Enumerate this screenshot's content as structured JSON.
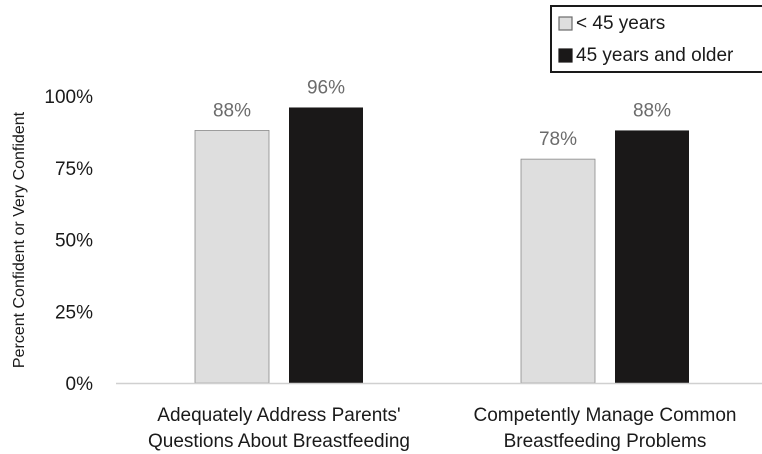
{
  "chart_data": {
    "type": "bar",
    "categories": [
      [
        "Adequately Address Parents'",
        "Questions About Breastfeeding"
      ],
      [
        "Competently Manage Common",
        "Breastfeeding Problems"
      ]
    ],
    "series": [
      {
        "name": "< 45 years",
        "values": [
          88,
          78
        ],
        "color": "#dedede",
        "stroke": "#8a8a8a"
      },
      {
        "name": "45 years and older",
        "values": [
          96,
          88
        ],
        "color": "#1a1818",
        "stroke": "#1a1818"
      }
    ],
    "data_labels": [
      [
        "88%",
        "78%"
      ],
      [
        "96%",
        "88%"
      ]
    ],
    "yticks": [
      0,
      25,
      50,
      75,
      100
    ],
    "ytick_labels": [
      "0%",
      "25%",
      "50%",
      "75%",
      "100%"
    ],
    "ylim": [
      0,
      100
    ],
    "ylabel": "Percent Confident or Very Confident",
    "xlabel": "",
    "title": "",
    "grid": false,
    "legend_position": "top-right"
  }
}
